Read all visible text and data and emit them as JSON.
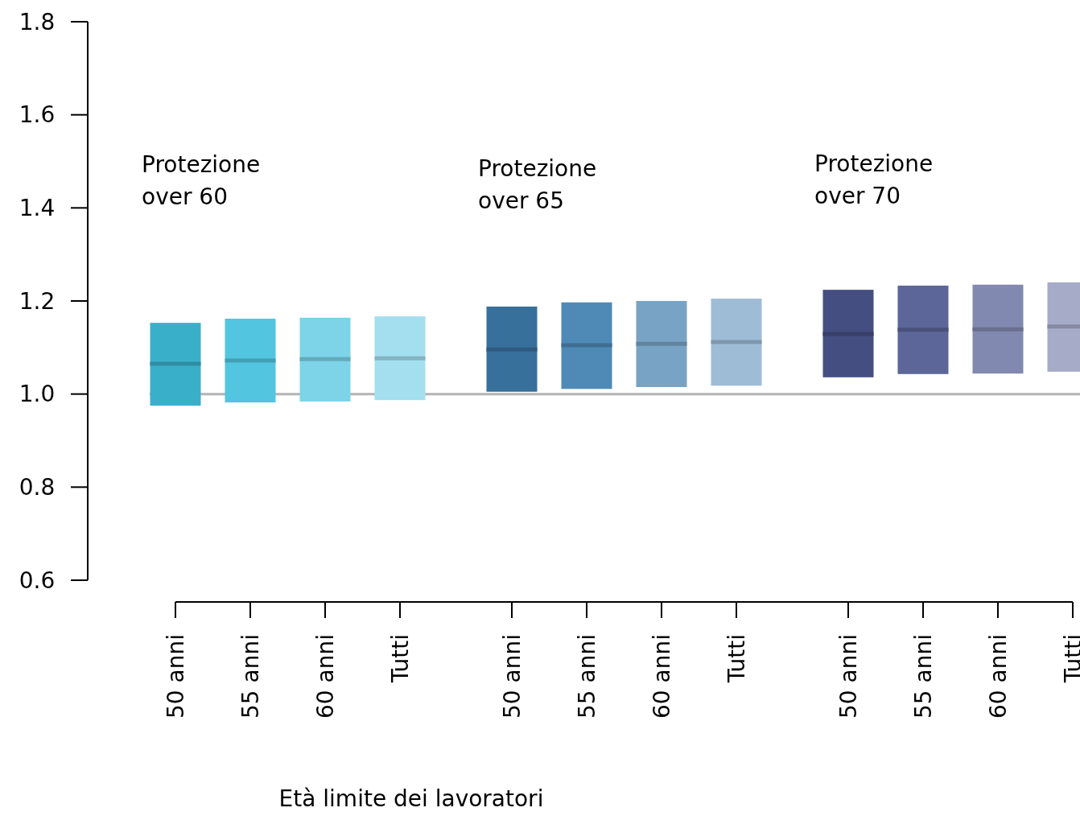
{
  "chart_data": {
    "type": "box",
    "xlabel": "Età limite dei lavoratori",
    "categories": [
      "50 anni",
      "55 anni",
      "60 anni",
      "Tutti",
      "50 anni",
      "55 anni",
      "60 anni",
      "Tutti",
      "50 anni",
      "55 anni",
      "60 anni",
      "Tutti"
    ],
    "boxes": [
      {
        "low": 0.975,
        "q1": 0.975,
        "median": 1.065,
        "q3": 1.153,
        "high": 1.153
      },
      {
        "low": 0.982,
        "q1": 0.982,
        "median": 1.072,
        "q3": 1.162,
        "high": 1.162
      },
      {
        "low": 0.984,
        "q1": 0.984,
        "median": 1.075,
        "q3": 1.164,
        "high": 1.164
      },
      {
        "low": 0.987,
        "q1": 0.987,
        "median": 1.077,
        "q3": 1.167,
        "high": 1.167
      },
      {
        "low": 1.005,
        "q1": 1.005,
        "median": 1.096,
        "q3": 1.188,
        "high": 1.188
      },
      {
        "low": 1.011,
        "q1": 1.011,
        "median": 1.105,
        "q3": 1.197,
        "high": 1.197
      },
      {
        "low": 1.015,
        "q1": 1.015,
        "median": 1.108,
        "q3": 1.2,
        "high": 1.2
      },
      {
        "low": 1.018,
        "q1": 1.018,
        "median": 1.112,
        "q3": 1.205,
        "high": 1.205
      },
      {
        "low": 1.036,
        "q1": 1.036,
        "median": 1.129,
        "q3": 1.224,
        "high": 1.224
      },
      {
        "low": 1.043,
        "q1": 1.043,
        "median": 1.138,
        "q3": 1.233,
        "high": 1.233
      },
      {
        "low": 1.044,
        "q1": 1.044,
        "median": 1.139,
        "q3": 1.235,
        "high": 1.235
      },
      {
        "low": 1.048,
        "q1": 1.048,
        "median": 1.145,
        "q3": 1.24,
        "high": 1.24
      }
    ],
    "colors": [
      "#3aafca",
      "#52c5e0",
      "#7dd3e8",
      "#a3dfee",
      "#38709c",
      "#4f8ab6",
      "#79a3c4",
      "#9fbcd6",
      "#454e80",
      "#5c6698",
      "#8289b0",
      "#a6abc8"
    ],
    "ylim": [
      0.6,
      1.8
    ],
    "yticks": [
      {
        "value": 0.6,
        "label": "0.6"
      },
      {
        "value": 0.8,
        "label": "0.8"
      },
      {
        "value": 1.0,
        "label": "1.0"
      },
      {
        "value": 1.2,
        "label": "1.2"
      },
      {
        "value": 1.4,
        "label": "1.4"
      },
      {
        "value": 1.6,
        "label": "1.6"
      },
      {
        "value": 1.8,
        "label": "1.8"
      }
    ],
    "ref_lines": [
      {
        "axis": "y",
        "value": 1.0,
        "color": "#b3b3b3"
      }
    ],
    "annotations": [
      "Protezione over 60",
      "Protezione over 65",
      "Protezione over 70"
    ]
  }
}
